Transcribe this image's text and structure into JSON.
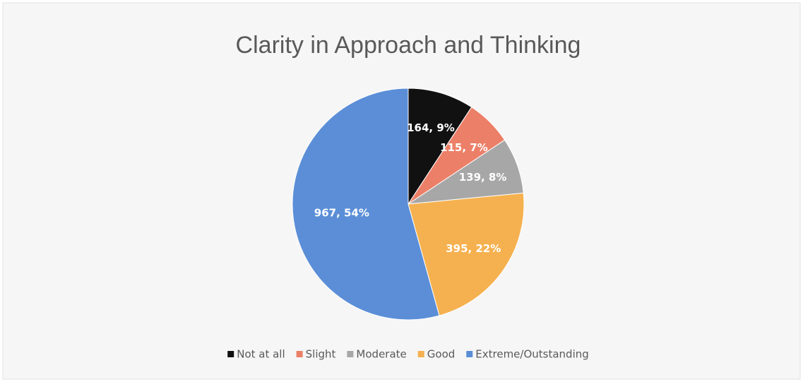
{
  "chart_data": {
    "type": "pie",
    "title": "Clarity in Approach and Thinking",
    "categories": [
      "Not at all",
      "Slight",
      "Moderate",
      "Good",
      "Extreme/Outstanding"
    ],
    "values": [
      164,
      115,
      139,
      395,
      967
    ],
    "value_labels": [
      "164, 9%",
      "115, 7%",
      "139, 8%",
      "395, 22%",
      "967, 54%"
    ],
    "colors": [
      "#111111",
      "#ec7f68",
      "#a7a7a7",
      "#f5b14f",
      "#5b8ed7"
    ],
    "legend": "bottom"
  }
}
